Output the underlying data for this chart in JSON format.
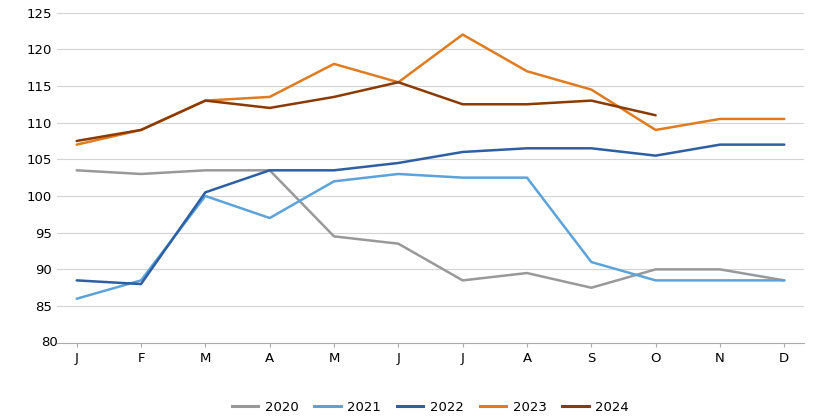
{
  "months": [
    "J",
    "F",
    "M",
    "A",
    "M",
    "J",
    "J",
    "A",
    "S",
    "O",
    "N",
    "D"
  ],
  "series": {
    "2020": [
      103.5,
      103.0,
      103.5,
      103.5,
      94.5,
      93.5,
      88.5,
      89.5,
      87.5,
      90.0,
      90.0,
      88.5
    ],
    "2021": [
      86.0,
      88.5,
      100.0,
      97.0,
      102.0,
      103.0,
      102.5,
      102.5,
      91.0,
      88.5,
      88.5,
      88.5
    ],
    "2022": [
      88.5,
      88.0,
      100.5,
      103.5,
      103.5,
      104.5,
      106.0,
      106.5,
      106.5,
      105.5,
      107.0,
      107.0
    ],
    "2023": [
      107.0,
      109.0,
      113.0,
      113.5,
      118.0,
      115.5,
      122.0,
      117.0,
      114.5,
      109.0,
      110.5,
      110.5
    ],
    "2024": [
      107.5,
      109.0,
      113.0,
      112.0,
      113.5,
      115.5,
      112.5,
      112.5,
      113.0,
      111.0,
      null,
      null
    ]
  },
  "colors": {
    "2020": "#999999",
    "2021": "#5BA3D9",
    "2022": "#2E5FA3",
    "2023": "#E07B20",
    "2024": "#8B3A00"
  },
  "ylim": [
    80,
    125
  ],
  "yticks": [
    85,
    90,
    95,
    100,
    105,
    110,
    115,
    120,
    125
  ],
  "yticks_shown": [
    125,
    120,
    115,
    110,
    105,
    100,
    95,
    90,
    85
  ],
  "legend_labels": [
    "2020",
    "2021",
    "2022",
    "2023",
    "2024"
  ],
  "background_color": "#ffffff",
  "grid_color": "#d3d3d3",
  "linewidth": 1.8
}
